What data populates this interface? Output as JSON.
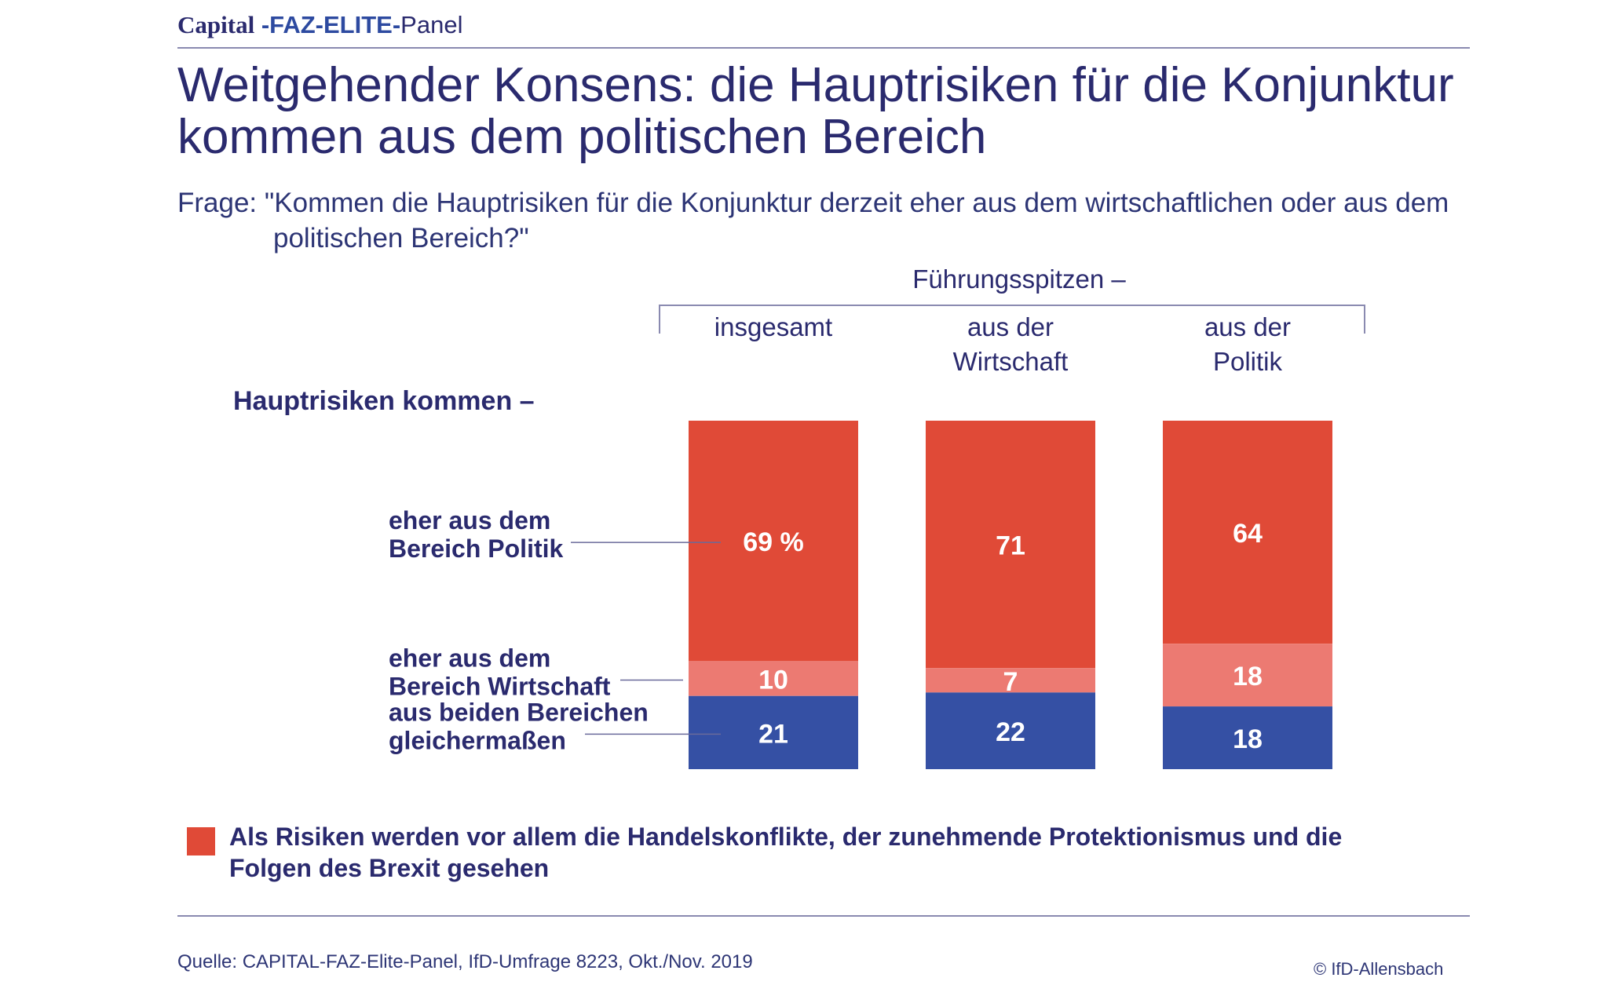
{
  "header": {
    "brand_capital": "Capital",
    "brand_faz": "-FAZ-ELITE-",
    "brand_panel": "Panel"
  },
  "title": "Weitgehender Konsens: die Hauptrisiken für die Konjunktur kommen aus dem politischen Bereich",
  "question": "Frage: \"Kommen die Hauptrisiken für die Konjunktur derzeit eher aus dem wirtschaftlichen oder aus dem politischen Bereich?\"",
  "chart_data": {
    "type": "bar",
    "stacked": true,
    "group_header": "Führungsspitzen –",
    "categories": [
      [
        "insgesamt"
      ],
      [
        "aus der",
        "Wirtschaft"
      ],
      [
        "aus der",
        "Politik"
      ]
    ],
    "row_header": "Hauptrisiken kommen –",
    "series": [
      {
        "name": [
          "eher aus dem",
          "Bereich Politik"
        ],
        "values": [
          69,
          71,
          64
        ],
        "labels": [
          "69 %",
          "71",
          "64"
        ],
        "color": "#e04a37"
      },
      {
        "name": [
          "eher aus dem",
          "Bereich Wirtschaft"
        ],
        "values": [
          10,
          7,
          18
        ],
        "labels": [
          "10",
          "7",
          "18"
        ],
        "color": "#ec7a72"
      },
      {
        "name": [
          "aus beiden Bereichen",
          "gleichermaßen"
        ],
        "values": [
          21,
          22,
          18
        ],
        "labels": [
          "21",
          "22",
          "18"
        ],
        "color": "#3550a4"
      }
    ],
    "ylim": [
      0,
      100
    ],
    "unit": "%"
  },
  "colors": {
    "text": "#2a2a6e",
    "politik": "#e04a37",
    "wirtschaft": "#ec7a72",
    "beide": "#3550a4"
  },
  "legend": {
    "text": "Als Risiken werden vor allem die Handelskonflikte, der zunehmende Protektionismus und die Folgen des Brexit gesehen",
    "color": "#e04a37"
  },
  "footer": {
    "source": "Quelle: CAPITAL-FAZ-Elite-Panel, IfD-Umfrage 8223, Okt./Nov. 2019",
    "copyright": "© IfD-Allensbach"
  }
}
